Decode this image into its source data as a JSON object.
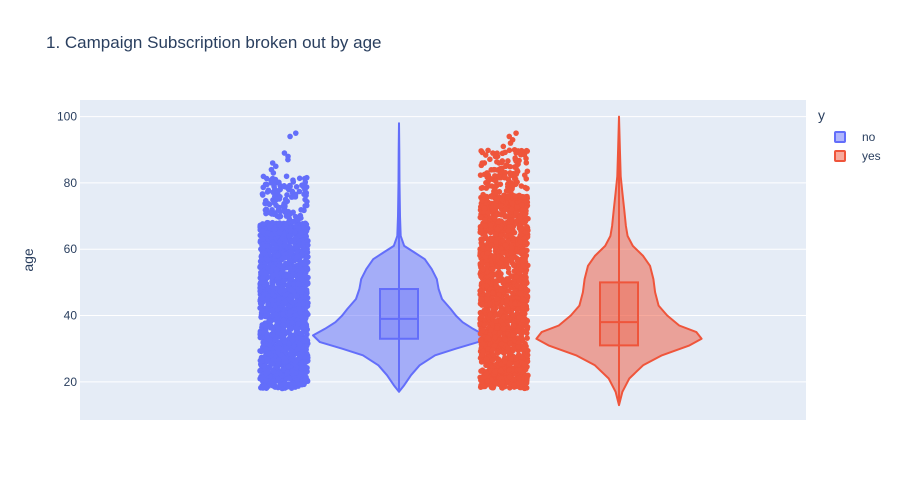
{
  "chart_data": {
    "type": "violin",
    "title": "1. Campaign Subscription broken out by age",
    "xlabel": "",
    "ylabel": "age",
    "ylim": [
      8.5,
      105
    ],
    "yticks": [
      20,
      40,
      60,
      80,
      100
    ],
    "grid": true,
    "points": "all",
    "box": true,
    "legend": {
      "title": "y",
      "position": "top-right"
    },
    "series": [
      {
        "name": "no",
        "color": "#636efa",
        "min": 17,
        "q1": 33,
        "median": 39,
        "q3": 48,
        "max": 98,
        "upper_fence": 70,
        "density": [
          [
            17,
            0.0
          ],
          [
            19,
            0.06
          ],
          [
            22,
            0.14
          ],
          [
            25,
            0.24
          ],
          [
            28,
            0.42
          ],
          [
            30,
            0.66
          ],
          [
            32,
            0.92
          ],
          [
            34,
            1.0
          ],
          [
            36,
            0.86
          ],
          [
            38,
            0.74
          ],
          [
            40,
            0.66
          ],
          [
            42,
            0.6
          ],
          [
            45,
            0.5
          ],
          [
            48,
            0.46
          ],
          [
            51,
            0.44
          ],
          [
            54,
            0.38
          ],
          [
            57,
            0.3
          ],
          [
            59,
            0.18
          ],
          [
            61,
            0.06
          ],
          [
            64,
            0.02
          ],
          [
            70,
            0.012
          ],
          [
            80,
            0.006
          ],
          [
            90,
            0.003
          ],
          [
            98,
            0.0
          ]
        ],
        "sparse_outliers": [
          95,
          94,
          89,
          88,
          87,
          86,
          85,
          84,
          83,
          82,
          81,
          80,
          79,
          78,
          77,
          76,
          75,
          74,
          73,
          72,
          71,
          70,
          69,
          68,
          67,
          66,
          65,
          64
        ]
      },
      {
        "name": "yes",
        "color": "#ef553b",
        "min": 13,
        "q1": 31,
        "median": 38,
        "q3": 50,
        "max": 100,
        "upper_fence": 78,
        "density": [
          [
            13,
            0.0
          ],
          [
            17,
            0.04
          ],
          [
            21,
            0.12
          ],
          [
            25,
            0.28
          ],
          [
            28,
            0.5
          ],
          [
            31,
            0.82
          ],
          [
            33,
            0.96
          ],
          [
            35,
            0.9
          ],
          [
            37,
            0.7
          ],
          [
            40,
            0.56
          ],
          [
            43,
            0.46
          ],
          [
            47,
            0.42
          ],
          [
            51,
            0.4
          ],
          [
            55,
            0.36
          ],
          [
            58,
            0.28
          ],
          [
            61,
            0.16
          ],
          [
            64,
            0.1
          ],
          [
            67,
            0.08
          ],
          [
            72,
            0.06
          ],
          [
            77,
            0.04
          ],
          [
            82,
            0.02
          ],
          [
            90,
            0.01
          ],
          [
            100,
            0.0
          ]
        ],
        "sparse_outliers": [
          95,
          94,
          93,
          92,
          91,
          90,
          89,
          88,
          87,
          86,
          85,
          84,
          83,
          82,
          81,
          80,
          79,
          78,
          77,
          76,
          75,
          74,
          73,
          72,
          71,
          70
        ]
      }
    ]
  }
}
